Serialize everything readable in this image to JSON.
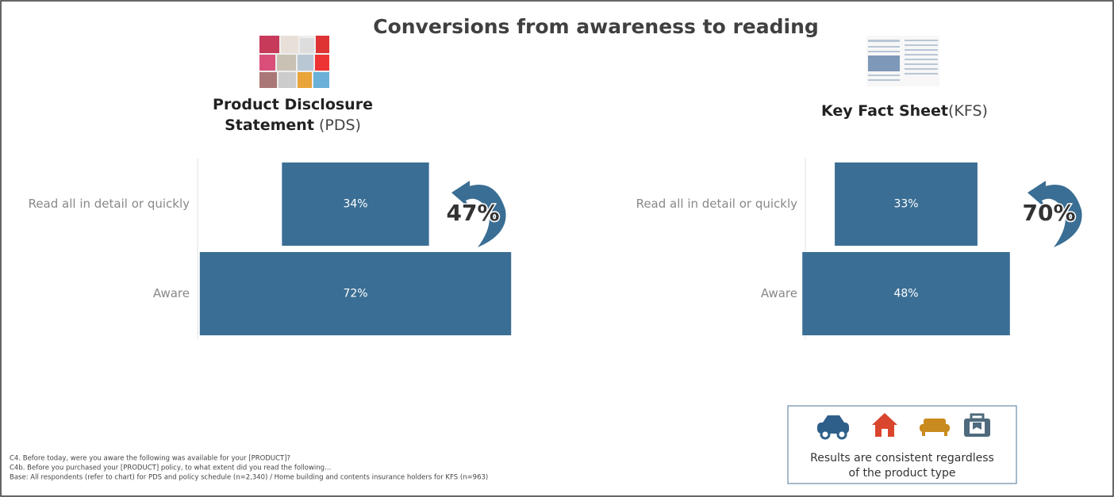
{
  "title": "Conversions from awareness to reading",
  "footnotes": [
    "C4.  Before today, were you aware the following was available for your [PRODUCT]?",
    "C4b. Before you purchased your [PRODUCT] policy, to what extent did you read the following…",
    "Base:  All respondents (refer to chart) for PDS and policy schedule (n=2,340) / Home building and contents insurance holders for KFS (n=963)"
  ],
  "note": [
    "Results  are consistent regardless",
    "of the product type"
  ],
  "chart_data": [
    {
      "type": "funnel",
      "title_lines": [
        "Product Disclosure",
        "Statement"
      ],
      "title_suffix": " (PDS)",
      "categories": [
        "Read all in detail or quickly",
        "Aware"
      ],
      "values": [
        34,
        72
      ],
      "value_labels": [
        "34%",
        "72%"
      ],
      "color": "#3a6e94",
      "xlim": [
        0,
        100
      ],
      "annotation": {
        "value": 47,
        "label": "47%"
      }
    },
    {
      "type": "funnel",
      "title_lines": [
        "Key Fact Sheet"
      ],
      "title_suffix": "(KFS)",
      "categories": [
        "Read all in detail or quickly",
        "Aware"
      ],
      "values": [
        33,
        48
      ],
      "value_labels": [
        "33%",
        "48%"
      ],
      "color": "#3a6e94",
      "xlim": [
        0,
        100
      ],
      "annotation": {
        "value": 70,
        "label": "70%"
      }
    }
  ]
}
